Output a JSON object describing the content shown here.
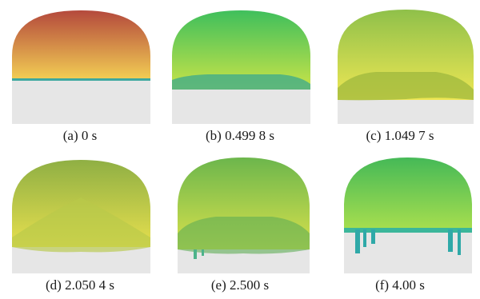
{
  "panels": [
    {
      "label": "(a) 0 s",
      "colors": [
        "#b4493c",
        "#f3cf54"
      ],
      "water": "flat"
    },
    {
      "label": "(b) 0.499 8 s",
      "colors": [
        "#3fbf5c",
        "#c9e348"
      ],
      "water": "shallow"
    },
    {
      "label": "(c) 1.049 7 s",
      "colors": [
        "#8fc04a",
        "#eee754"
      ],
      "water": "mid"
    },
    {
      "label": "(d) 2.050 4 s",
      "colors": [
        "#8faf44",
        "#e6df4e"
      ],
      "water": "peak"
    },
    {
      "label": "(e) 2.500 s",
      "colors": [
        "#6cb64c",
        "#d8e14c"
      ],
      "water": "wide"
    },
    {
      "label": "(f) 4.00 s",
      "colors": [
        "#45b957",
        "#a9df4e"
      ],
      "water": "drip"
    }
  ]
}
